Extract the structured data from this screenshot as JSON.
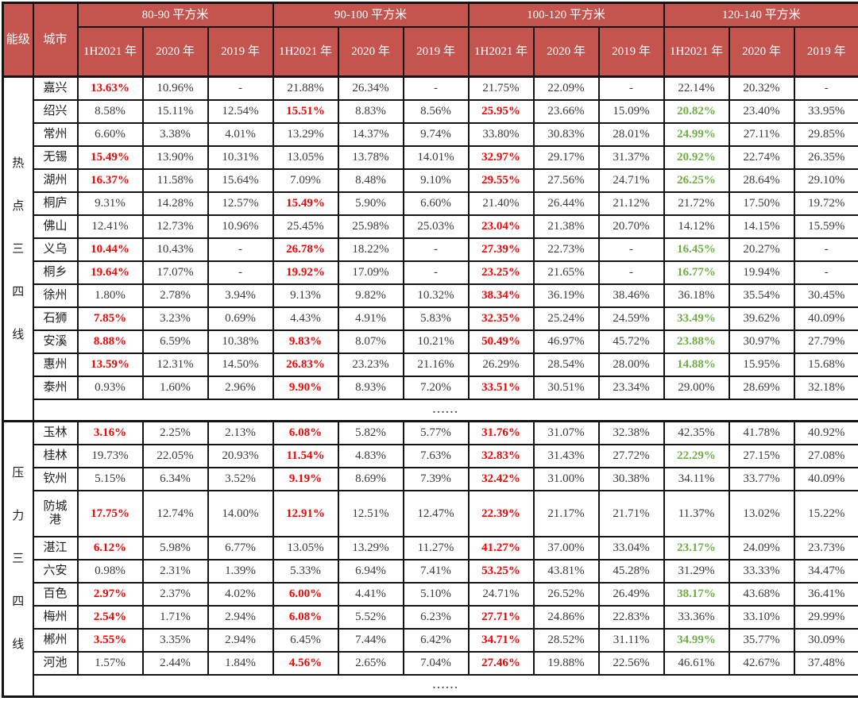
{
  "colors": {
    "header_bg": "#C5534E",
    "header_text": "#FFFFFF",
    "highlight_red": "#FE0000",
    "highlight_green": "#6EAE44",
    "body_text": "#3A3A3A",
    "border": "#141414"
  },
  "chart_data": {
    "type": "table",
    "corner": {
      "level": "能级",
      "city": "城市"
    },
    "area_groups": [
      "80-90 平方米",
      "90-100 平方米",
      "100-120 平方米",
      "120-140 平方米"
    ],
    "year_cols": [
      "1H2021 年",
      "2020 年",
      "2019 年"
    ],
    "ellipsis": "......",
    "style_legend": {
      "r": "red-bold",
      "g": "green-bold",
      "": "normal"
    },
    "row_groups": [
      {
        "label": "热点三四线",
        "rows": [
          {
            "city": "嘉兴",
            "values": [
              "13.63%",
              "10.96%",
              "-",
              "21.88%",
              "26.34%",
              "-",
              "21.75%",
              "22.09%",
              "-",
              "22.14%",
              "20.32%",
              "-"
            ],
            "styles": [
              "r",
              "",
              "",
              "",
              "",
              "",
              "",
              "",
              "",
              "",
              "",
              ""
            ]
          },
          {
            "city": "绍兴",
            "values": [
              "8.58%",
              "15.11%",
              "12.54%",
              "15.51%",
              "8.83%",
              "8.56%",
              "25.95%",
              "23.66%",
              "15.09%",
              "20.82%",
              "23.40%",
              "33.95%"
            ],
            "styles": [
              "",
              "",
              "",
              "r",
              "",
              "",
              "r",
              "",
              "",
              "g",
              "",
              ""
            ]
          },
          {
            "city": "常州",
            "values": [
              "6.60%",
              "3.38%",
              "4.01%",
              "13.29%",
              "14.37%",
              "9.74%",
              "33.80%",
              "30.83%",
              "28.01%",
              "24.99%",
              "27.11%",
              "29.85%"
            ],
            "styles": [
              "",
              "",
              "",
              "",
              "",
              "",
              "",
              "",
              "",
              "g",
              "",
              ""
            ]
          },
          {
            "city": "无锡",
            "values": [
              "15.49%",
              "13.90%",
              "10.31%",
              "13.05%",
              "13.78%",
              "14.01%",
              "32.97%",
              "29.17%",
              "31.37%",
              "20.92%",
              "22.74%",
              "26.35%"
            ],
            "styles": [
              "r",
              "",
              "",
              "",
              "",
              "",
              "r",
              "",
              "",
              "g",
              "",
              ""
            ]
          },
          {
            "city": "湖州",
            "values": [
              "16.37%",
              "11.58%",
              "15.64%",
              "7.09%",
              "8.48%",
              "9.10%",
              "29.55%",
              "27.56%",
              "24.71%",
              "26.25%",
              "28.64%",
              "29.10%"
            ],
            "styles": [
              "r",
              "",
              "",
              "",
              "",
              "",
              "r",
              "",
              "",
              "g",
              "",
              ""
            ]
          },
          {
            "city": "桐庐",
            "values": [
              "9.31%",
              "14.28%",
              "12.57%",
              "15.49%",
              "5.90%",
              "6.60%",
              "21.40%",
              "26.44%",
              "21.12%",
              "21.72%",
              "17.50%",
              "19.72%"
            ],
            "styles": [
              "",
              "",
              "",
              "r",
              "",
              "",
              "",
              "",
              "",
              "",
              "",
              ""
            ]
          },
          {
            "city": "佛山",
            "values": [
              "12.41%",
              "12.73%",
              "10.96%",
              "25.45%",
              "25.98%",
              "25.03%",
              "23.04%",
              "21.38%",
              "20.70%",
              "14.12%",
              "14.15%",
              "15.59%"
            ],
            "styles": [
              "",
              "",
              "",
              "",
              "",
              "",
              "r",
              "",
              "",
              "",
              "",
              ""
            ]
          },
          {
            "city": "义乌",
            "values": [
              "10.44%",
              "10.43%",
              "-",
              "26.78%",
              "18.22%",
              "-",
              "27.39%",
              "22.73%",
              "-",
              "16.45%",
              "20.27%",
              "-"
            ],
            "styles": [
              "r",
              "",
              "",
              "r",
              "",
              "",
              "r",
              "",
              "",
              "g",
              "",
              ""
            ]
          },
          {
            "city": "桐乡",
            "values": [
              "19.64%",
              "17.07%",
              "-",
              "19.92%",
              "17.09%",
              "-",
              "23.25%",
              "21.65%",
              "-",
              "16.77%",
              "19.94%",
              "-"
            ],
            "styles": [
              "r",
              "",
              "",
              "r",
              "",
              "",
              "r",
              "",
              "",
              "g",
              "",
              ""
            ]
          },
          {
            "city": "徐州",
            "values": [
              "1.80%",
              "2.78%",
              "3.94%",
              "9.13%",
              "9.82%",
              "10.32%",
              "38.34%",
              "36.19%",
              "38.46%",
              "36.18%",
              "35.54%",
              "30.45%"
            ],
            "styles": [
              "",
              "",
              "",
              "",
              "",
              "",
              "r",
              "",
              "",
              "",
              "",
              ""
            ]
          },
          {
            "city": "石狮",
            "values": [
              "7.85%",
              "3.23%",
              "0.69%",
              "4.43%",
              "4.91%",
              "5.83%",
              "32.35%",
              "25.24%",
              "24.59%",
              "33.49%",
              "39.62%",
              "40.09%"
            ],
            "styles": [
              "r",
              "",
              "",
              "",
              "",
              "",
              "r",
              "",
              "",
              "g",
              "",
              ""
            ]
          },
          {
            "city": "安溪",
            "values": [
              "8.88%",
              "6.59%",
              "10.38%",
              "9.83%",
              "8.07%",
              "10.21%",
              "50.49%",
              "46.97%",
              "45.72%",
              "23.88%",
              "30.97%",
              "27.79%"
            ],
            "styles": [
              "r",
              "",
              "",
              "r",
              "",
              "",
              "r",
              "",
              "",
              "g",
              "",
              ""
            ]
          },
          {
            "city": "惠州",
            "values": [
              "13.59%",
              "12.31%",
              "14.50%",
              "26.83%",
              "23.23%",
              "21.16%",
              "26.29%",
              "28.54%",
              "28.00%",
              "14.88%",
              "15.95%",
              "15.68%"
            ],
            "styles": [
              "r",
              "",
              "",
              "r",
              "",
              "",
              "",
              "",
              "",
              "g",
              "",
              ""
            ]
          },
          {
            "city": "泰州",
            "values": [
              "0.93%",
              "1.60%",
              "2.96%",
              "9.90%",
              "8.93%",
              "7.20%",
              "33.51%",
              "30.51%",
              "23.34%",
              "29.00%",
              "28.69%",
              "32.18%"
            ],
            "styles": [
              "",
              "",
              "",
              "r",
              "",
              "",
              "r",
              "",
              "",
              "",
              "",
              ""
            ]
          }
        ]
      },
      {
        "label": "压力三四线",
        "rows": [
          {
            "city": "玉林",
            "values": [
              "3.16%",
              "2.25%",
              "2.13%",
              "6.08%",
              "5.82%",
              "5.77%",
              "31.76%",
              "31.07%",
              "32.38%",
              "42.35%",
              "41.78%",
              "40.92%"
            ],
            "styles": [
              "r",
              "",
              "",
              "r",
              "",
              "",
              "r",
              "",
              "",
              "",
              "",
              ""
            ]
          },
          {
            "city": "桂林",
            "values": [
              "19.73%",
              "22.05%",
              "20.93%",
              "11.54%",
              "4.83%",
              "7.63%",
              "32.83%",
              "31.43%",
              "27.72%",
              "22.29%",
              "27.15%",
              "27.08%"
            ],
            "styles": [
              "",
              "",
              "",
              "r",
              "",
              "",
              "r",
              "",
              "",
              "g",
              "",
              ""
            ]
          },
          {
            "city": "钦州",
            "values": [
              "5.15%",
              "6.34%",
              "3.52%",
              "9.19%",
              "8.69%",
              "7.39%",
              "32.42%",
              "31.00%",
              "30.38%",
              "34.11%",
              "33.77%",
              "40.09%"
            ],
            "styles": [
              "",
              "",
              "",
              "r",
              "",
              "",
              "r",
              "",
              "",
              "",
              "",
              ""
            ]
          },
          {
            "city": "防城港",
            "two_line": true,
            "values": [
              "17.75%",
              "12.74%",
              "14.00%",
              "12.91%",
              "12.51%",
              "12.47%",
              "22.39%",
              "21.17%",
              "21.71%",
              "11.37%",
              "13.02%",
              "15.22%"
            ],
            "styles": [
              "r",
              "",
              "",
              "r",
              "",
              "",
              "r",
              "",
              "",
              "",
              "",
              ""
            ]
          },
          {
            "city": "湛江",
            "values": [
              "6.12%",
              "5.98%",
              "6.77%",
              "13.05%",
              "13.29%",
              "11.27%",
              "41.27%",
              "37.00%",
              "33.04%",
              "23.17%",
              "24.09%",
              "23.73%"
            ],
            "styles": [
              "r",
              "",
              "",
              "",
              "",
              "",
              "r",
              "",
              "",
              "g",
              "",
              ""
            ]
          },
          {
            "city": "六安",
            "values": [
              "0.98%",
              "2.31%",
              "1.39%",
              "5.33%",
              "6.94%",
              "7.41%",
              "53.25%",
              "43.81%",
              "45.28%",
              "31.29%",
              "33.33%",
              "34.47%"
            ],
            "styles": [
              "",
              "",
              "",
              "",
              "",
              "",
              "r",
              "",
              "",
              "",
              "",
              ""
            ]
          },
          {
            "city": "百色",
            "values": [
              "2.97%",
              "2.37%",
              "4.02%",
              "6.00%",
              "4.41%",
              "5.10%",
              "24.71%",
              "26.52%",
              "26.49%",
              "38.17%",
              "43.68%",
              "36.41%"
            ],
            "styles": [
              "r",
              "",
              "",
              "r",
              "",
              "",
              "",
              "",
              "",
              "g",
              "",
              ""
            ]
          },
          {
            "city": "梅州",
            "values": [
              "2.54%",
              "1.71%",
              "2.94%",
              "6.08%",
              "5.52%",
              "6.23%",
              "27.71%",
              "24.86%",
              "22.83%",
              "33.36%",
              "33.10%",
              "29.99%"
            ],
            "styles": [
              "r",
              "",
              "",
              "r",
              "",
              "",
              "r",
              "",
              "",
              "",
              "",
              ""
            ]
          },
          {
            "city": "郴州",
            "values": [
              "3.55%",
              "3.35%",
              "2.94%",
              "6.45%",
              "7.44%",
              "6.42%",
              "34.71%",
              "28.52%",
              "31.11%",
              "34.99%",
              "35.77%",
              "30.09%"
            ],
            "styles": [
              "r",
              "",
              "",
              "",
              "",
              "",
              "r",
              "",
              "",
              "g",
              "",
              ""
            ]
          },
          {
            "city": "河池",
            "values": [
              "1.57%",
              "2.44%",
              "1.84%",
              "4.56%",
              "2.65%",
              "7.04%",
              "27.46%",
              "19.88%",
              "22.56%",
              "46.61%",
              "42.67%",
              "37.48%"
            ],
            "styles": [
              "",
              "",
              "",
              "r",
              "",
              "",
              "r",
              "",
              "",
              "",
              "",
              ""
            ]
          }
        ]
      }
    ]
  }
}
